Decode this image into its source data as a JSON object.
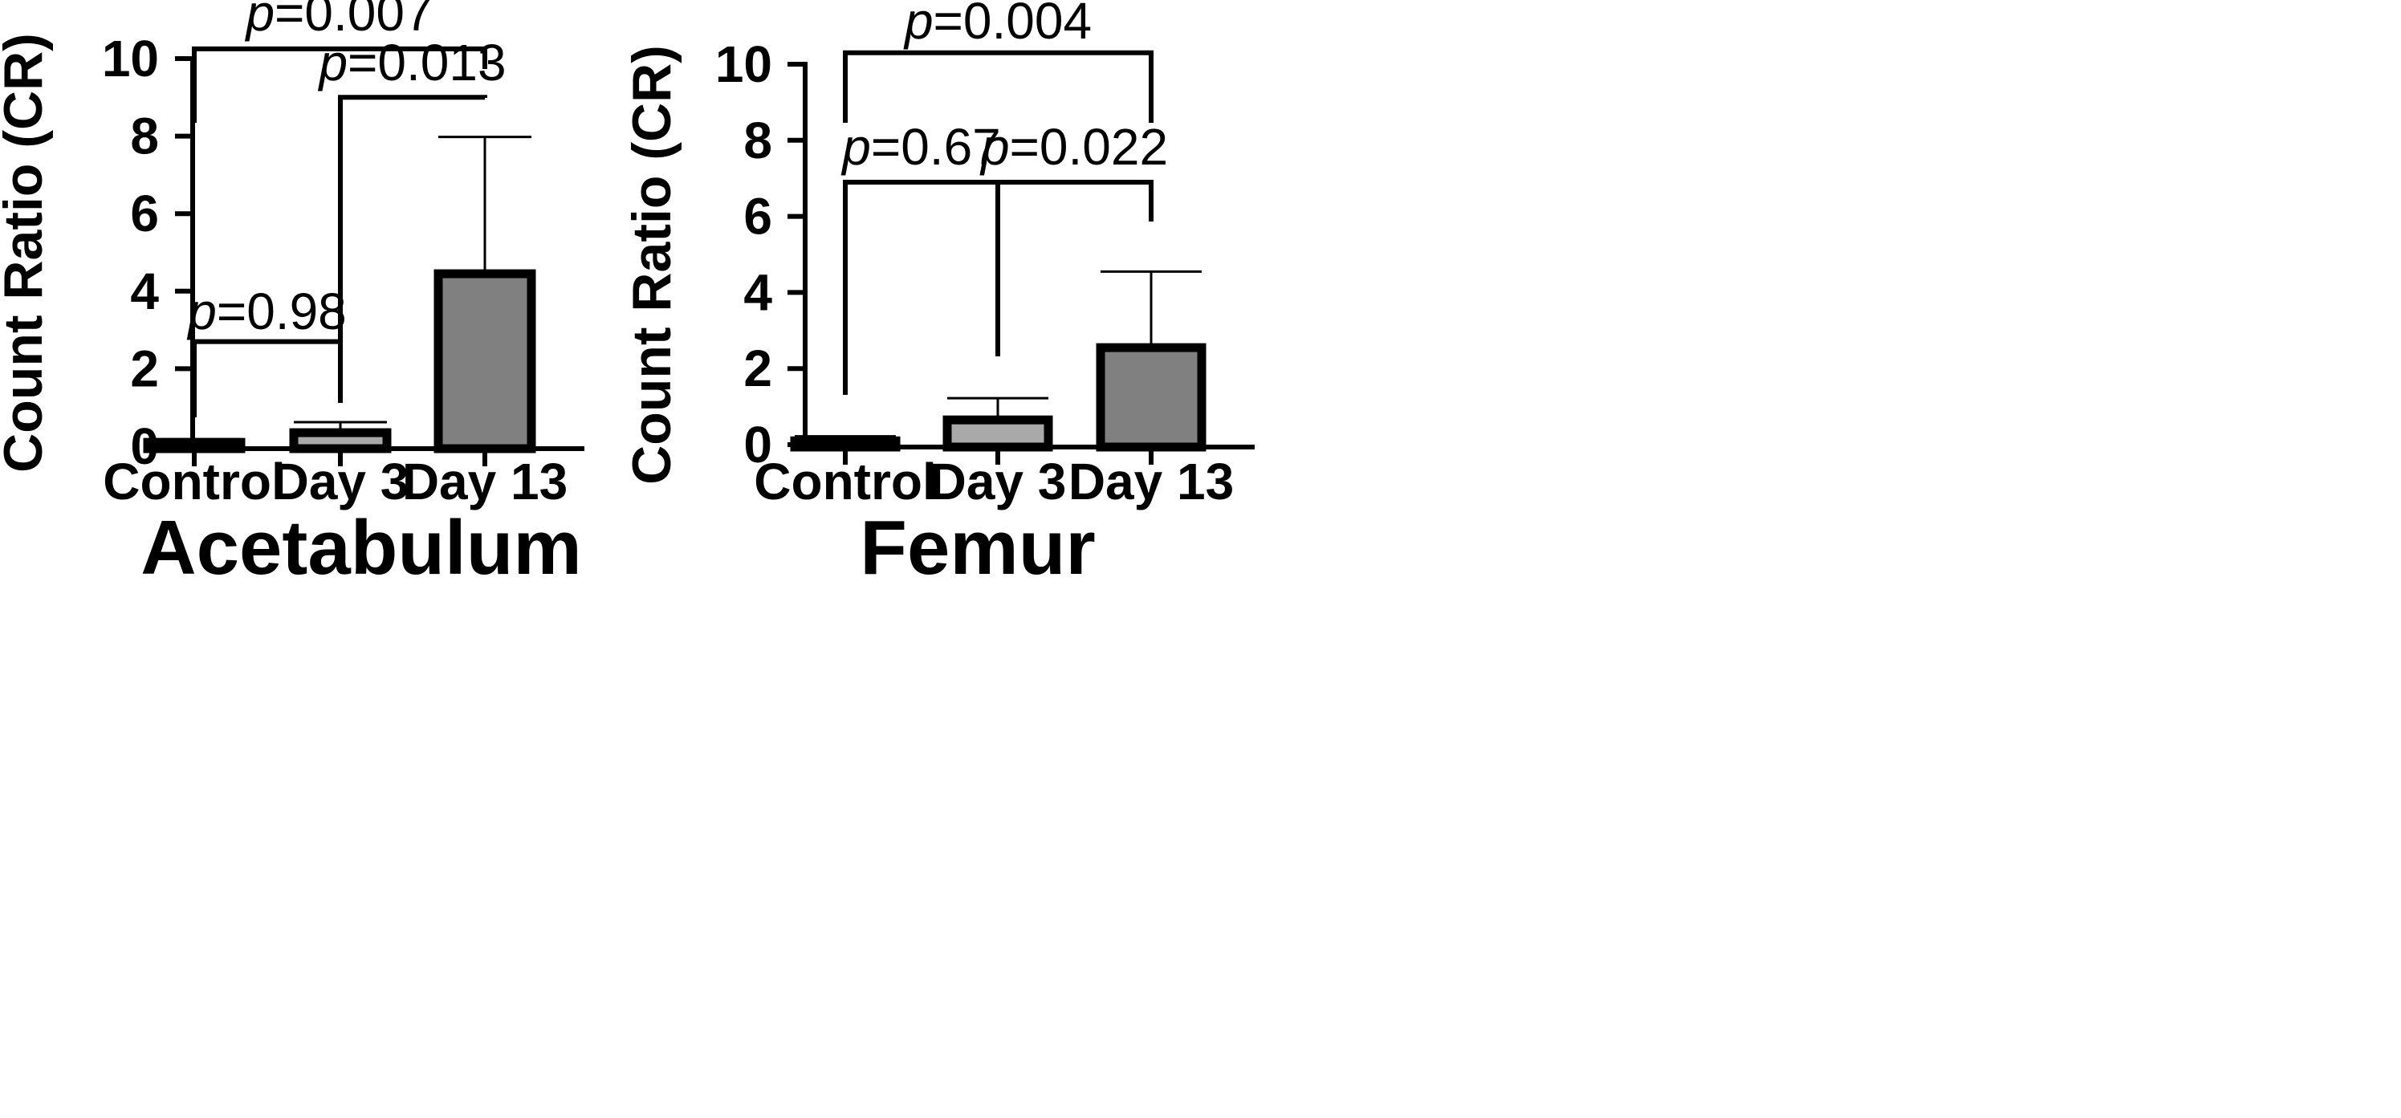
{
  "chart_data": [
    {
      "type": "bar",
      "title": "Acetabulum",
      "xlabel": "",
      "ylabel": "Count Ratio (CR)",
      "ylim": [
        0,
        10
      ],
      "yticks": [
        0,
        2,
        4,
        6,
        8,
        10
      ],
      "grid": false,
      "categories": [
        "Control",
        "Day 3",
        "Day 13"
      ],
      "values": [
        0.1,
        0.35,
        4.45
      ],
      "error_upper": [
        0.18,
        0.62,
        7.98
      ],
      "colors": [
        "#8a8a8a",
        "#a9a9a9",
        "#808080"
      ],
      "comparisons": [
        {
          "from": 0,
          "to": 1,
          "p_prefix": "p",
          "p_value": "=0.98",
          "level": 2.7
        },
        {
          "from": 1,
          "to": 2,
          "p_prefix": "p",
          "p_value": "=0.013",
          "level": 9.0
        },
        {
          "from": 0,
          "to": 2,
          "p_prefix": "p",
          "p_value": "=0.007",
          "level": 10.25
        }
      ]
    },
    {
      "type": "bar",
      "title": "Femur",
      "xlabel": "",
      "ylabel": "Count Ratio (CR)",
      "ylim": [
        0,
        10
      ],
      "yticks": [
        0,
        2,
        4,
        6,
        8,
        10
      ],
      "grid": false,
      "categories": [
        "Control",
        "Day 3",
        "Day 13"
      ],
      "values": [
        0.1,
        0.65,
        2.55
      ],
      "error_upper": [
        0.22,
        1.22,
        4.55
      ],
      "colors": [
        "#8a8a8a",
        "#a9a9a9",
        "#808080"
      ],
      "comparisons": [
        {
          "from": 0,
          "to": 1,
          "p_prefix": "p",
          "p_value": "=0.67",
          "level": 6.9
        },
        {
          "from": 1,
          "to": 2,
          "p_prefix": "p",
          "p_value": "=0.022",
          "level": 6.9
        },
        {
          "from": 0,
          "to": 2,
          "p_prefix": "p",
          "p_value": "=0.004",
          "level": 10.3
        }
      ]
    }
  ]
}
